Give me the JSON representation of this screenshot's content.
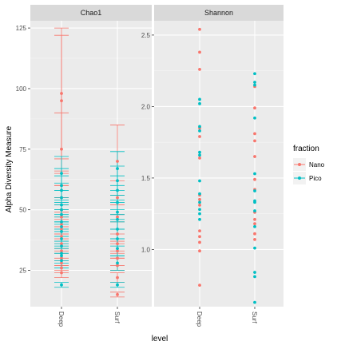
{
  "chart_data": {
    "type": "scatter",
    "ylabel": "Alpha Diversity Measure",
    "xlabel": "level",
    "legend": {
      "title": "fraction",
      "placement": "right",
      "entries": [
        {
          "name": "Nano",
          "color": "#F8766D"
        },
        {
          "name": "Pico",
          "color": "#00BFC4"
        }
      ]
    },
    "grid": true,
    "panels": [
      {
        "title": "Chao1",
        "categories": [
          "Deep",
          "Surf"
        ],
        "ylim": [
          10,
          128
        ],
        "yticks": [
          25,
          50,
          75,
          100,
          125
        ],
        "series": [
          {
            "name": "Nano",
            "points": [
              {
                "x": "Deep",
                "y": 98,
                "lo": 71,
                "hi": 125
              },
              {
                "x": "Deep",
                "y": 95,
                "lo": 65,
                "hi": 122
              },
              {
                "x": "Deep",
                "y": 75,
                "lo": 60,
                "hi": 90
              },
              {
                "x": "Deep",
                "y": 60,
                "lo": 55,
                "hi": 66
              },
              {
                "x": "Deep",
                "y": 55,
                "lo": 50,
                "hi": 60
              },
              {
                "x": "Deep",
                "y": 50,
                "lo": 46,
                "hi": 55
              },
              {
                "x": "Deep",
                "y": 47,
                "lo": 43,
                "hi": 52
              },
              {
                "x": "Deep",
                "y": 44,
                "lo": 40,
                "hi": 49
              },
              {
                "x": "Deep",
                "y": 42,
                "lo": 38,
                "hi": 47
              },
              {
                "x": "Deep",
                "y": 39,
                "lo": 36,
                "hi": 43
              },
              {
                "x": "Deep",
                "y": 36,
                "lo": 33,
                "hi": 40
              },
              {
                "x": "Deep",
                "y": 33,
                "lo": 30,
                "hi": 37
              },
              {
                "x": "Deep",
                "y": 30,
                "lo": 27,
                "hi": 34
              },
              {
                "x": "Deep",
                "y": 28,
                "lo": 25,
                "hi": 32
              },
              {
                "x": "Deep",
                "y": 26,
                "lo": 24,
                "hi": 29
              },
              {
                "x": "Deep",
                "y": 24,
                "lo": 22,
                "hi": 27
              },
              {
                "x": "Surf",
                "y": 70,
                "lo": 56,
                "hi": 85
              },
              {
                "x": "Surf",
                "y": 55,
                "lo": 48,
                "hi": 62
              },
              {
                "x": "Surf",
                "y": 47,
                "lo": 42,
                "hi": 52
              },
              {
                "x": "Surf",
                "y": 40,
                "lo": 36,
                "hi": 45
              },
              {
                "x": "Surf",
                "y": 36,
                "lo": 32,
                "hi": 40
              },
              {
                "x": "Surf",
                "y": 33,
                "lo": 30,
                "hi": 37
              },
              {
                "x": "Surf",
                "y": 30,
                "lo": 27,
                "hi": 33
              },
              {
                "x": "Surf",
                "y": 27,
                "lo": 25,
                "hi": 30
              },
              {
                "x": "Surf",
                "y": 22,
                "lo": 20,
                "hi": 24
              },
              {
                "x": "Surf",
                "y": 15,
                "lo": 14,
                "hi": 16
              }
            ]
          },
          {
            "name": "Pico",
            "points": [
              {
                "x": "Deep",
                "y": 65,
                "lo": 58,
                "hi": 72
              },
              {
                "x": "Deep",
                "y": 60,
                "lo": 54,
                "hi": 67
              },
              {
                "x": "Deep",
                "y": 58,
                "lo": 52,
                "hi": 64
              },
              {
                "x": "Deep",
                "y": 55,
                "lo": 50,
                "hi": 61
              },
              {
                "x": "Deep",
                "y": 52,
                "lo": 47,
                "hi": 58
              },
              {
                "x": "Deep",
                "y": 50,
                "lo": 45,
                "hi": 55
              },
              {
                "x": "Deep",
                "y": 48,
                "lo": 44,
                "hi": 53
              },
              {
                "x": "Deep",
                "y": 45,
                "lo": 41,
                "hi": 50
              },
              {
                "x": "Deep",
                "y": 43,
                "lo": 39,
                "hi": 48
              },
              {
                "x": "Deep",
                "y": 41,
                "lo": 37,
                "hi": 45
              },
              {
                "x": "Deep",
                "y": 38,
                "lo": 35,
                "hi": 42
              },
              {
                "x": "Deep",
                "y": 35,
                "lo": 32,
                "hi": 39
              },
              {
                "x": "Deep",
                "y": 32,
                "lo": 29,
                "hi": 36
              },
              {
                "x": "Deep",
                "y": 31,
                "lo": 28,
                "hi": 34
              },
              {
                "x": "Deep",
                "y": 29,
                "lo": 26,
                "hi": 32
              },
              {
                "x": "Deep",
                "y": 19,
                "lo": 18,
                "hi": 20
              },
              {
                "x": "Surf",
                "y": 67,
                "lo": 60,
                "hi": 74
              },
              {
                "x": "Surf",
                "y": 62,
                "lo": 56,
                "hi": 68
              },
              {
                "x": "Surf",
                "y": 58,
                "lo": 53,
                "hi": 64
              },
              {
                "x": "Surf",
                "y": 53,
                "lo": 48,
                "hi": 58
              },
              {
                "x": "Surf",
                "y": 49,
                "lo": 45,
                "hi": 54
              },
              {
                "x": "Surf",
                "y": 46,
                "lo": 42,
                "hi": 50
              },
              {
                "x": "Surf",
                "y": 42,
                "lo": 38,
                "hi": 46
              },
              {
                "x": "Surf",
                "y": 38,
                "lo": 35,
                "hi": 42
              },
              {
                "x": "Surf",
                "y": 34,
                "lo": 31,
                "hi": 38
              },
              {
                "x": "Surf",
                "y": 28,
                "lo": 25,
                "hi": 31
              },
              {
                "x": "Surf",
                "y": 19,
                "lo": 18,
                "hi": 20
              }
            ]
          }
        ]
      },
      {
        "title": "Shannon",
        "categories": [
          "Deep",
          "Surf"
        ],
        "ylim": [
          0.6,
          2.6
        ],
        "yticks": [
          1.0,
          1.5,
          2.0,
          2.5
        ],
        "series": [
          {
            "name": "Nano",
            "points": [
              {
                "x": "Deep",
                "y": 2.54
              },
              {
                "x": "Deep",
                "y": 2.38
              },
              {
                "x": "Deep",
                "y": 2.26
              },
              {
                "x": "Deep",
                "y": 1.85
              },
              {
                "x": "Deep",
                "y": 1.79
              },
              {
                "x": "Deep",
                "y": 1.64
              },
              {
                "x": "Deep",
                "y": 1.38
              },
              {
                "x": "Deep",
                "y": 1.35
              },
              {
                "x": "Deep",
                "y": 1.31
              },
              {
                "x": "Deep",
                "y": 1.13
              },
              {
                "x": "Deep",
                "y": 1.09
              },
              {
                "x": "Deep",
                "y": 1.05
              },
              {
                "x": "Deep",
                "y": 0.99
              },
              {
                "x": "Deep",
                "y": 0.75
              },
              {
                "x": "Surf",
                "y": 2.14
              },
              {
                "x": "Surf",
                "y": 1.99
              },
              {
                "x": "Surf",
                "y": 1.81
              },
              {
                "x": "Surf",
                "y": 1.76
              },
              {
                "x": "Surf",
                "y": 1.65
              },
              {
                "x": "Surf",
                "y": 1.49
              },
              {
                "x": "Surf",
                "y": 1.42
              },
              {
                "x": "Surf",
                "y": 1.26
              },
              {
                "x": "Surf",
                "y": 1.21
              },
              {
                "x": "Surf",
                "y": 1.18
              },
              {
                "x": "Surf",
                "y": 1.11
              },
              {
                "x": "Surf",
                "y": 1.07
              }
            ]
          },
          {
            "name": "Pico",
            "points": [
              {
                "x": "Deep",
                "y": 2.05
              },
              {
                "x": "Deep",
                "y": 2.02
              },
              {
                "x": "Deep",
                "y": 1.86
              },
              {
                "x": "Deep",
                "y": 1.83
              },
              {
                "x": "Deep",
                "y": 1.68
              },
              {
                "x": "Deep",
                "y": 1.66
              },
              {
                "x": "Deep",
                "y": 1.48
              },
              {
                "x": "Deep",
                "y": 1.39
              },
              {
                "x": "Deep",
                "y": 1.33
              },
              {
                "x": "Deep",
                "y": 1.28
              },
              {
                "x": "Deep",
                "y": 1.25
              },
              {
                "x": "Deep",
                "y": 1.21
              },
              {
                "x": "Surf",
                "y": 2.23
              },
              {
                "x": "Surf",
                "y": 2.17
              },
              {
                "x": "Surf",
                "y": 2.15
              },
              {
                "x": "Surf",
                "y": 1.92
              },
              {
                "x": "Surf",
                "y": 1.53
              },
              {
                "x": "Surf",
                "y": 1.41
              },
              {
                "x": "Surf",
                "y": 1.34
              },
              {
                "x": "Surf",
                "y": 1.33
              },
              {
                "x": "Surf",
                "y": 1.27
              },
              {
                "x": "Surf",
                "y": 1.16
              },
              {
                "x": "Surf",
                "y": 1.01
              },
              {
                "x": "Surf",
                "y": 0.84
              },
              {
                "x": "Surf",
                "y": 0.81
              },
              {
                "x": "Surf",
                "y": 0.63
              }
            ]
          }
        ]
      }
    ]
  }
}
